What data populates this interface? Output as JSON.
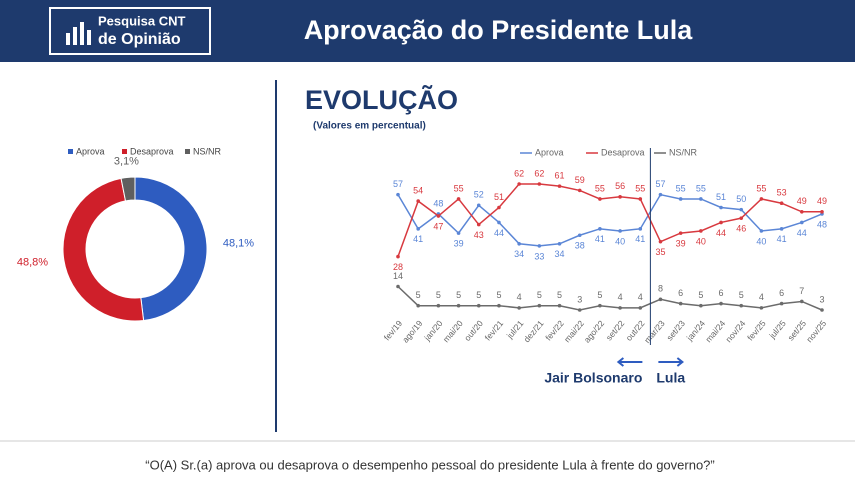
{
  "header": {
    "logo_line1": "Pesquisa CNT",
    "logo_line2": "de Opinião",
    "title": "Aprovação do Presidente Lula"
  },
  "chart_data": [
    {
      "type": "donut",
      "categories": [
        "Aprova",
        "Desaprova",
        "NS/NR"
      ],
      "values": [
        48.1,
        48.8,
        3.1
      ],
      "value_labels": [
        "48,1%",
        "48,8%",
        "3,1%"
      ],
      "colors": [
        "#2e5cc0",
        "#cf1f2a",
        "#5f5f5f"
      ],
      "legend": "top"
    },
    {
      "type": "line",
      "title": "EVOLUÇÃO",
      "subtitle": "(Valores em percentual)",
      "categories": [
        "fev/19",
        "ago/19",
        "jan/20",
        "mai/20",
        "out/20",
        "fev/21",
        "jul/21",
        "dez/21",
        "fev/22",
        "mai/22",
        "ago/22",
        "set/22",
        "out/22",
        "mar/23",
        "set/23",
        "jan/24",
        "mai/24",
        "nov/24",
        "fev/25",
        "jul/25",
        "set/25",
        "nov/25"
      ],
      "series": [
        {
          "name": "Aprova",
          "color": "#5b86d6",
          "values": [
            57,
            41,
            48,
            39,
            52,
            44,
            34,
            33,
            34,
            38,
            41,
            40,
            41,
            57,
            55,
            55,
            51,
            50,
            40,
            41,
            44,
            48
          ]
        },
        {
          "name": "Desaprova",
          "color": "#d8393f",
          "values": [
            28,
            54,
            47,
            55,
            43,
            51,
            62,
            62,
            61,
            59,
            55,
            56,
            55,
            35,
            39,
            40,
            44,
            46,
            55,
            53,
            49,
            49
          ]
        },
        {
          "name": "NS/NR",
          "color": "#6b6b6b",
          "values": [
            14,
            5,
            5,
            5,
            5,
            5,
            4,
            5,
            5,
            3,
            5,
            4,
            4,
            8,
            6,
            5,
            6,
            5,
            4,
            6,
            7,
            3
          ]
        }
      ],
      "legend": "top",
      "annotations": [
        "Jair Bolsonaro",
        "Lula"
      ]
    }
  ],
  "footer": {
    "question": "“O(A) Sr.(a) aprova ou desaprova o desempenho pessoal do presidente Lula à frente do governo?”"
  }
}
